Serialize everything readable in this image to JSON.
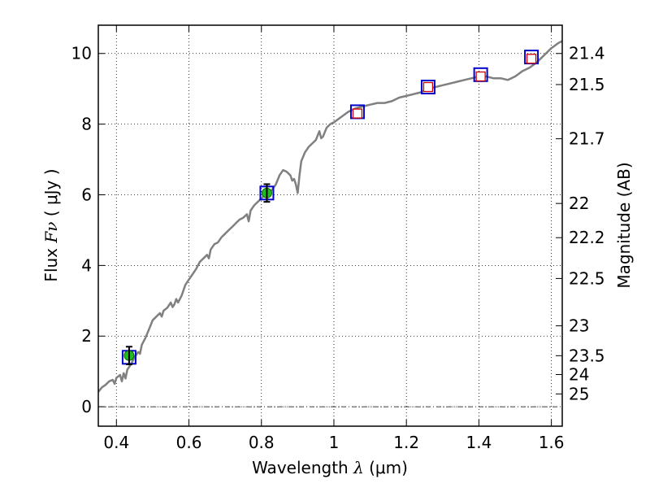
{
  "chart_data": {
    "type": "scatter",
    "xlabel": {
      "prefix": "Wavelength ",
      "symbol": "λ",
      "unit": " (μm)"
    },
    "ylabel": {
      "prefix": "Flux ",
      "symbol": "Fν",
      "unit": " ( μJy )"
    },
    "ylabel_right": "Magnitude (AB)",
    "xlim": [
      0.35,
      1.63
    ],
    "ylim": [
      -0.55,
      10.8
    ],
    "grid": true,
    "x_ticks": [
      {
        "v": 0.4,
        "label": "0.4"
      },
      {
        "v": 0.6,
        "label": "0.6"
      },
      {
        "v": 0.8,
        "label": "0.8"
      },
      {
        "v": 1.0,
        "label": "1"
      },
      {
        "v": 1.2,
        "label": "1.2"
      },
      {
        "v": 1.4,
        "label": "1.4"
      },
      {
        "v": 1.6,
        "label": "1.6"
      }
    ],
    "y_ticks": [
      {
        "v": 0,
        "label": "0"
      },
      {
        "v": 2,
        "label": "2"
      },
      {
        "v": 4,
        "label": "4"
      },
      {
        "v": 6,
        "label": "6"
      },
      {
        "v": 8,
        "label": "8"
      },
      {
        "v": 10,
        "label": "10"
      }
    ],
    "mag_ticks": [
      {
        "v": 21.4,
        "label": "21.4"
      },
      {
        "v": 21.5,
        "label": "21.5"
      },
      {
        "v": 21.7,
        "label": "21.7"
      },
      {
        "v": 22,
        "label": "22"
      },
      {
        "v": 22.2,
        "label": "22.2"
      },
      {
        "v": 22.5,
        "label": "22.5"
      },
      {
        "v": 23,
        "label": "23"
      },
      {
        "v": 23.5,
        "label": "23.5"
      },
      {
        "v": 24,
        "label": "24"
      },
      {
        "v": 25,
        "label": "25"
      }
    ],
    "model_spectrum": {
      "color": "#808080",
      "points": [
        [
          0.35,
          0.42
        ],
        [
          0.36,
          0.55
        ],
        [
          0.37,
          0.62
        ],
        [
          0.38,
          0.72
        ],
        [
          0.39,
          0.76
        ],
        [
          0.395,
          0.65
        ],
        [
          0.4,
          0.82
        ],
        [
          0.41,
          0.9
        ],
        [
          0.415,
          0.72
        ],
        [
          0.42,
          0.95
        ],
        [
          0.425,
          0.8
        ],
        [
          0.43,
          1.05
        ],
        [
          0.44,
          1.2
        ],
        [
          0.45,
          1.4
        ],
        [
          0.46,
          1.55
        ],
        [
          0.465,
          1.5
        ],
        [
          0.47,
          1.75
        ],
        [
          0.48,
          1.95
        ],
        [
          0.49,
          2.2
        ],
        [
          0.5,
          2.45
        ],
        [
          0.51,
          2.55
        ],
        [
          0.52,
          2.65
        ],
        [
          0.525,
          2.55
        ],
        [
          0.53,
          2.72
        ],
        [
          0.54,
          2.8
        ],
        [
          0.55,
          2.95
        ],
        [
          0.555,
          2.82
        ],
        [
          0.56,
          2.9
        ],
        [
          0.565,
          3.05
        ],
        [
          0.57,
          2.95
        ],
        [
          0.58,
          3.15
        ],
        [
          0.59,
          3.45
        ],
        [
          0.6,
          3.6
        ],
        [
          0.61,
          3.75
        ],
        [
          0.62,
          3.9
        ],
        [
          0.63,
          4.1
        ],
        [
          0.64,
          4.2
        ],
        [
          0.65,
          4.3
        ],
        [
          0.655,
          4.2
        ],
        [
          0.66,
          4.45
        ],
        [
          0.67,
          4.6
        ],
        [
          0.68,
          4.65
        ],
        [
          0.69,
          4.8
        ],
        [
          0.7,
          4.9
        ],
        [
          0.71,
          5.0
        ],
        [
          0.72,
          5.1
        ],
        [
          0.73,
          5.2
        ],
        [
          0.74,
          5.3
        ],
        [
          0.75,
          5.35
        ],
        [
          0.76,
          5.45
        ],
        [
          0.765,
          5.25
        ],
        [
          0.77,
          5.55
        ],
        [
          0.78,
          5.7
        ],
        [
          0.79,
          5.8
        ],
        [
          0.8,
          5.9
        ],
        [
          0.81,
          6.0
        ],
        [
          0.82,
          6.05
        ],
        [
          0.83,
          6.15
        ],
        [
          0.84,
          6.3
        ],
        [
          0.85,
          6.55
        ],
        [
          0.86,
          6.7
        ],
        [
          0.87,
          6.65
        ],
        [
          0.88,
          6.55
        ],
        [
          0.885,
          6.4
        ],
        [
          0.89,
          6.45
        ],
        [
          0.895,
          6.3
        ],
        [
          0.9,
          6.05
        ],
        [
          0.905,
          6.55
        ],
        [
          0.91,
          6.95
        ],
        [
          0.92,
          7.2
        ],
        [
          0.93,
          7.35
        ],
        [
          0.94,
          7.45
        ],
        [
          0.95,
          7.55
        ],
        [
          0.96,
          7.8
        ],
        [
          0.965,
          7.6
        ],
        [
          0.97,
          7.65
        ],
        [
          0.98,
          7.9
        ],
        [
          0.99,
          8.0
        ],
        [
          1.0,
          8.05
        ],
        [
          1.02,
          8.2
        ],
        [
          1.04,
          8.35
        ],
        [
          1.06,
          8.45
        ],
        [
          1.08,
          8.5
        ],
        [
          1.1,
          8.55
        ],
        [
          1.12,
          8.6
        ],
        [
          1.14,
          8.6
        ],
        [
          1.16,
          8.65
        ],
        [
          1.18,
          8.75
        ],
        [
          1.2,
          8.8
        ],
        [
          1.22,
          8.85
        ],
        [
          1.24,
          8.9
        ],
        [
          1.26,
          9.0
        ],
        [
          1.28,
          9.05
        ],
        [
          1.3,
          9.1
        ],
        [
          1.32,
          9.15
        ],
        [
          1.34,
          9.2
        ],
        [
          1.36,
          9.25
        ],
        [
          1.38,
          9.3
        ],
        [
          1.4,
          9.35
        ],
        [
          1.42,
          9.35
        ],
        [
          1.44,
          9.3
        ],
        [
          1.46,
          9.3
        ],
        [
          1.48,
          9.25
        ],
        [
          1.5,
          9.35
        ],
        [
          1.52,
          9.5
        ],
        [
          1.54,
          9.6
        ],
        [
          1.56,
          9.75
        ],
        [
          1.58,
          9.95
        ],
        [
          1.6,
          10.15
        ],
        [
          1.62,
          10.3
        ],
        [
          1.63,
          10.35
        ]
      ]
    },
    "series": [
      {
        "marker": "blue-square",
        "color": "#0000cc",
        "points": [
          {
            "x": 0.435,
            "y": 1.4
          },
          {
            "x": 0.815,
            "y": 6.05
          },
          {
            "x": 1.065,
            "y": 8.35
          },
          {
            "x": 1.26,
            "y": 9.05
          },
          {
            "x": 1.405,
            "y": 9.4
          },
          {
            "x": 1.545,
            "y": 9.9
          }
        ]
      },
      {
        "marker": "red-square",
        "color": "#cc0000",
        "points": [
          {
            "x": 1.065,
            "y": 8.3
          },
          {
            "x": 1.26,
            "y": 9.05
          },
          {
            "x": 1.405,
            "y": 9.35
          },
          {
            "x": 1.545,
            "y": 9.85
          }
        ]
      },
      {
        "marker": "green-circle-errorbar",
        "color": "#22bb22",
        "points": [
          {
            "x": 0.435,
            "y": 1.45,
            "err": 0.25
          },
          {
            "x": 0.815,
            "y": 6.05,
            "err": 0.25
          }
        ]
      }
    ]
  }
}
